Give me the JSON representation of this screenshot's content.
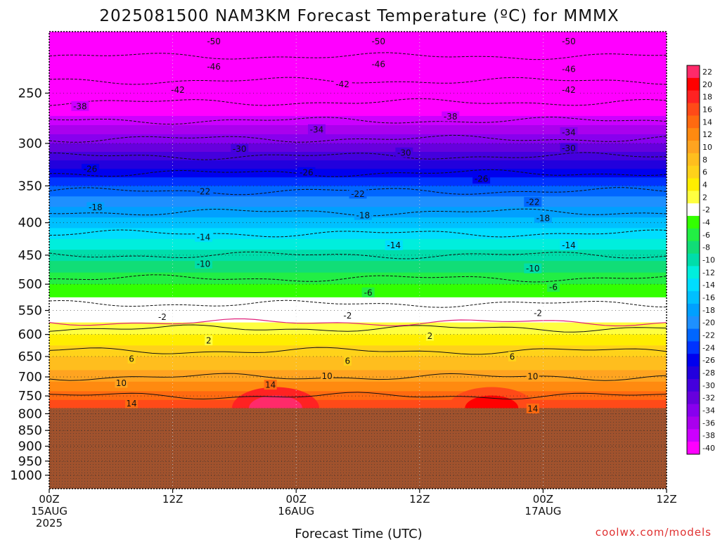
{
  "chart_data": {
    "type": "heatmap",
    "title": "2025081500 NAM3KM Forecast Temperature (ºC) for MMMX",
    "xlabel": "Forecast Time (UTC)",
    "ylabel": "",
    "x_ticks": [
      {
        "hour": 0,
        "lines": [
          "00Z",
          "15AUG",
          "2025"
        ]
      },
      {
        "hour": 12,
        "lines": [
          "12Z"
        ]
      },
      {
        "hour": 24,
        "lines": [
          "00Z",
          "16AUG"
        ]
      },
      {
        "hour": 36,
        "lines": [
          "12Z"
        ]
      },
      {
        "hour": 48,
        "lines": [
          "00Z",
          "17AUG"
        ]
      },
      {
        "hour": 60,
        "lines": [
          "12Z"
        ]
      }
    ],
    "xlim": [
      0,
      60
    ],
    "y_ticks": [
      250,
      300,
      350,
      400,
      450,
      500,
      550,
      600,
      650,
      700,
      750,
      800,
      850,
      900,
      950,
      1000
    ],
    "ylim_hPa": [
      200,
      1050
    ],
    "y_scale": "log-pressure",
    "terrain_pressure_hPa": 784,
    "terrain_color": "#a0522d",
    "colorbar": {
      "levels": [
        22,
        20,
        18,
        16,
        14,
        12,
        10,
        8,
        6,
        4,
        2,
        -2,
        -4,
        -6,
        -8,
        -10,
        -12,
        -14,
        -16,
        -18,
        -20,
        -22,
        -24,
        -26,
        -28,
        -30,
        -32,
        -34,
        -36,
        -38,
        -40
      ],
      "colors": [
        "#ff2a6a",
        "#ff0000",
        "#ff2222",
        "#ff4a18",
        "#ff6a10",
        "#ff8a10",
        "#ffa420",
        "#ffbe1e",
        "#ffd21a",
        "#ffee00",
        "#ffff40",
        "#ffffff",
        "#33ff00",
        "#22ee44",
        "#11dd77",
        "#00ddaa",
        "#00eedd",
        "#00ddff",
        "#00c0ff",
        "#00a0ff",
        "#1e90ff",
        "#0066ff",
        "#0033ff",
        "#0000ee",
        "#2200dd",
        "#4400dd",
        "#6600dd",
        "#8800ee",
        "#aa00ee",
        "#cc00ff",
        "#ff00ff"
      ]
    },
    "temperature_profile": [
      {
        "p": 200,
        "t": -54
      },
      {
        "p": 250,
        "t": -44
      },
      {
        "p": 300,
        "t": -33
      },
      {
        "p": 350,
        "t": -23
      },
      {
        "p": 400,
        "t": -16
      },
      {
        "p": 450,
        "t": -10
      },
      {
        "p": 500,
        "t": -5
      },
      {
        "p": 550,
        "t": -1
      },
      {
        "p": 600,
        "t": 3
      },
      {
        "p": 650,
        "t": 7
      },
      {
        "p": 700,
        "t": 10
      },
      {
        "p": 750,
        "t": 14
      },
      {
        "p": 784,
        "t": 17
      }
    ],
    "contour_labels": [
      {
        "text": "50",
        "hour": 16,
        "p": 207
      },
      {
        "text": "50",
        "hour": 32,
        "p": 207
      },
      {
        "text": "50",
        "hour": 50.5,
        "p": 207
      },
      {
        "text": "46",
        "hour": 16,
        "p": 227
      },
      {
        "text": "46",
        "hour": 32,
        "p": 225
      },
      {
        "text": "46",
        "hour": 50.5,
        "p": 229
      },
      {
        "text": "42",
        "hour": 12.5,
        "p": 247
      },
      {
        "text": "42",
        "hour": 28.5,
        "p": 242
      },
      {
        "text": "42",
        "hour": 50.5,
        "p": 247
      },
      {
        "text": "38",
        "hour": 3,
        "p": 262
      },
      {
        "text": "38",
        "hour": 39,
        "p": 272
      },
      {
        "text": "34",
        "hour": 26,
        "p": 285
      },
      {
        "text": "34",
        "hour": 50.5,
        "p": 288
      },
      {
        "text": "30",
        "hour": 18.5,
        "p": 306
      },
      {
        "text": "30",
        "hour": 34.5,
        "p": 310
      },
      {
        "text": "30",
        "hour": 50.5,
        "p": 305
      },
      {
        "text": "26",
        "hour": 4,
        "p": 329
      },
      {
        "text": "26",
        "hour": 25,
        "p": 333
      },
      {
        "text": "26",
        "hour": 42,
        "p": 341
      },
      {
        "text": "22",
        "hour": 15,
        "p": 357
      },
      {
        "text": "22",
        "hour": 30,
        "p": 360
      },
      {
        "text": "22",
        "hour": 47,
        "p": 371
      },
      {
        "text": "18",
        "hour": 4.5,
        "p": 378
      },
      {
        "text": "18",
        "hour": 30.5,
        "p": 389
      },
      {
        "text": "18",
        "hour": 48,
        "p": 393
      },
      {
        "text": "14",
        "hour": 15,
        "p": 421
      },
      {
        "text": "14",
        "hour": 33.5,
        "p": 434
      },
      {
        "text": "14",
        "hour": 50.5,
        "p": 434
      },
      {
        "text": "10",
        "hour": 15,
        "p": 464
      },
      {
        "text": "10",
        "hour": 47,
        "p": 472
      },
      {
        "text": "6",
        "hour": 31,
        "p": 515
      },
      {
        "text": "6",
        "hour": 49,
        "p": 505
      },
      {
        "text": "2",
        "hour": 11,
        "p": 563
      },
      {
        "text": "2",
        "hour": 29,
        "p": 560
      },
      {
        "text": "2",
        "hour": 47.5,
        "p": 555
      },
      {
        "text": "2",
        "hour": 15.5,
        "p": 613
      },
      {
        "text": "2",
        "hour": 37,
        "p": 603
      },
      {
        "text": "6",
        "hour": 8,
        "p": 655
      },
      {
        "text": "6",
        "hour": 29,
        "p": 660
      },
      {
        "text": "6",
        "hour": 45,
        "p": 650
      },
      {
        "text": "10",
        "hour": 7,
        "p": 715
      },
      {
        "text": "10",
        "hour": 27,
        "p": 697
      },
      {
        "text": "10",
        "hour": 47,
        "p": 698
      },
      {
        "text": "14",
        "hour": 8,
        "p": 770
      },
      {
        "text": "14",
        "hour": 21.5,
        "p": 720
      },
      {
        "text": "14",
        "hour": 47,
        "p": 785
      }
    ],
    "grid": true,
    "credit": "coolwx.com/models"
  }
}
